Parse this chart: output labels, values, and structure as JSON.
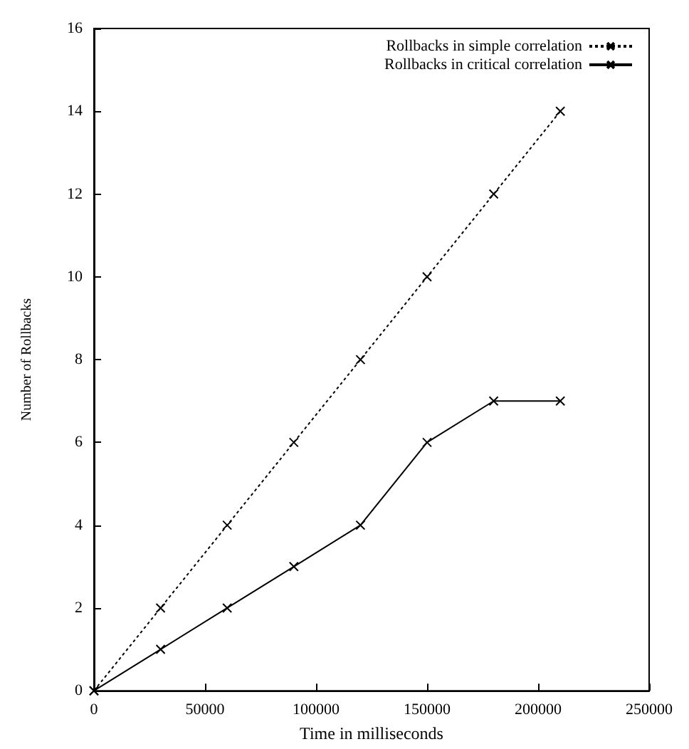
{
  "chart_data": {
    "type": "line",
    "xlabel": "Time in milliseconds",
    "ylabel": "Number of Rollbacks",
    "x": [
      0,
      30000,
      60000,
      90000,
      120000,
      150000,
      180000,
      210000
    ],
    "series": [
      {
        "name": "Rollbacks in simple correlation",
        "color": "#000000",
        "marker": "cross",
        "line_style": "dotted",
        "values": [
          0,
          2,
          4,
          6,
          8,
          10,
          12,
          14
        ]
      },
      {
        "name": "Rollbacks in critical correlation",
        "color": "#000000",
        "marker": "cross",
        "line_style": "solid",
        "values": [
          0,
          1,
          2,
          3,
          4,
          6,
          7,
          7
        ]
      }
    ],
    "xlim": [
      0,
      250000
    ],
    "xticks": [
      0,
      50000,
      100000,
      150000,
      200000,
      250000
    ],
    "ylim": [
      0,
      16
    ],
    "yticks": [
      0,
      2,
      4,
      6,
      8,
      10,
      12,
      14,
      16
    ],
    "grid": false,
    "legend": "top right"
  }
}
